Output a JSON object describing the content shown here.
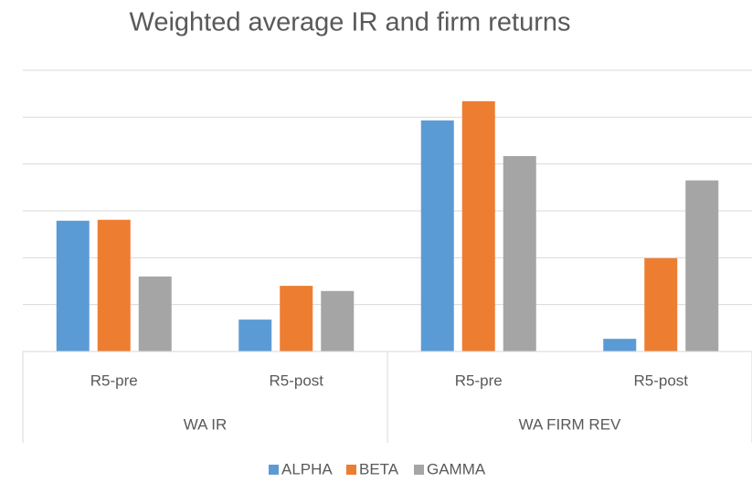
{
  "chart_data": {
    "type": "bar",
    "title": "Weighted average IR and firm returns",
    "groups": [
      {
        "name": "WA IR",
        "categories": [
          "R5-pre",
          "R5-post"
        ]
      },
      {
        "name": "WA FIRM REV",
        "categories": [
          "R5-pre",
          "R5-post"
        ]
      }
    ],
    "series": [
      {
        "name": "ALPHA",
        "color": "#5b9bd5",
        "values": [
          2.79,
          0.68,
          4.93,
          0.27
        ]
      },
      {
        "name": "BETA",
        "color": "#ed7d31",
        "values": [
          2.81,
          1.4,
          5.34,
          1.99
        ]
      },
      {
        "name": "GAMMA",
        "color": "#a5a5a5",
        "values": [
          1.6,
          1.29,
          4.17,
          3.65
        ]
      }
    ],
    "ylim": [
      0,
      6
    ],
    "yticks": [
      0,
      1,
      2,
      3,
      4,
      5,
      6
    ],
    "grid": true,
    "legend": "bottom"
  }
}
